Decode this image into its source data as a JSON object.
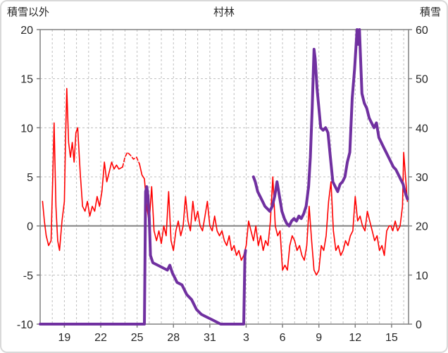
{
  "chart_data": {
    "type": "line",
    "title": "村林",
    "left_axis": {
      "label": "積雪以外",
      "min": -10,
      "max": 20,
      "ticks": [
        20,
        15,
        10,
        5,
        0,
        -5,
        -10
      ]
    },
    "right_axis": {
      "label": "積雪",
      "min": 0,
      "max": 60,
      "ticks": [
        60,
        50,
        40,
        30,
        20,
        10,
        0
      ]
    },
    "x_axis": {
      "min": 0,
      "max": 30.4,
      "grid_step": 1,
      "tick_positions": [
        2,
        5,
        8,
        11,
        14,
        17,
        20,
        23,
        26,
        29
      ],
      "tick_labels": [
        "19",
        "22",
        "25",
        "28",
        "31",
        "3",
        "6",
        "9",
        "12",
        "15"
      ]
    },
    "zero_line_left_value": 0,
    "colors": {
      "background": "#ffffff",
      "grid": "#bfbfbf",
      "axis": "#808080",
      "text": "#262626",
      "red": "#ff0000",
      "purple": "#7030a0"
    },
    "series": [
      {
        "id": "red-solid",
        "axis": "left",
        "color": "#ff0000",
        "width": 1.6,
        "segments": [
          [
            [
              0.2,
              2.5
            ],
            [
              0.35,
              0.5
            ],
            [
              0.5,
              -1.0
            ],
            [
              0.7,
              -2.0
            ],
            [
              0.9,
              -1.5
            ],
            [
              1.05,
              5.5
            ],
            [
              1.15,
              10.5
            ],
            [
              1.3,
              2.0
            ],
            [
              1.45,
              -1.5
            ],
            [
              1.6,
              -2.5
            ],
            [
              1.8,
              0.5
            ],
            [
              2.0,
              2.5
            ],
            [
              2.1,
              9.0
            ],
            [
              2.2,
              14.0
            ],
            [
              2.35,
              8.5
            ],
            [
              2.5,
              7.0
            ],
            [
              2.65,
              8.5
            ],
            [
              2.8,
              6.5
            ],
            [
              2.95,
              9.5
            ],
            [
              3.1,
              10.0
            ],
            [
              3.3,
              5.5
            ],
            [
              3.5,
              2.0
            ],
            [
              3.7,
              1.5
            ],
            [
              3.9,
              2.5
            ],
            [
              4.1,
              1.0
            ],
            [
              4.3,
              2.0
            ],
            [
              4.5,
              1.5
            ],
            [
              4.7,
              3.0
            ],
            [
              4.9,
              2.0
            ],
            [
              5.1,
              3.5
            ],
            [
              5.3,
              6.5
            ],
            [
              5.5,
              4.5
            ],
            [
              5.7,
              5.5
            ],
            [
              5.9,
              6.5
            ],
            [
              6.1,
              5.8
            ],
            [
              6.3,
              6.2
            ],
            [
              6.5,
              5.8
            ],
            [
              6.8,
              6.0
            ]
          ],
          [
            [
              8.2,
              6.3
            ],
            [
              8.4,
              5.2
            ],
            [
              8.6,
              4.8
            ],
            [
              8.8,
              2.0
            ],
            [
              9.0,
              0.3
            ],
            [
              9.2,
              4.0
            ],
            [
              9.4,
              -0.5
            ],
            [
              9.6,
              -1.5
            ],
            [
              9.8,
              -0.5
            ],
            [
              10.0,
              -1.8
            ],
            [
              10.2,
              0.0
            ],
            [
              10.4,
              -1.0
            ],
            [
              10.6,
              3.5
            ],
            [
              10.8,
              -1.5
            ],
            [
              11.0,
              -2.5
            ],
            [
              11.2,
              -0.5
            ],
            [
              11.4,
              0.5
            ],
            [
              11.6,
              -1.0
            ],
            [
              11.8,
              0.0
            ],
            [
              12.0,
              3.0
            ],
            [
              12.2,
              0.5
            ],
            [
              12.4,
              -0.5
            ],
            [
              12.6,
              2.5
            ],
            [
              12.8,
              0.5
            ],
            [
              13.0,
              1.5
            ],
            [
              13.2,
              0.0
            ],
            [
              13.4,
              -0.5
            ],
            [
              13.6,
              1.0
            ],
            [
              13.8,
              2.5
            ],
            [
              14.0,
              0.0
            ],
            [
              14.2,
              -0.5
            ],
            [
              14.4,
              1.0
            ],
            [
              14.6,
              -0.5
            ],
            [
              14.8,
              -1.0
            ],
            [
              15.0,
              -0.5
            ],
            [
              15.2,
              -1.5
            ],
            [
              15.4,
              -2.0
            ],
            [
              15.6,
              -1.0
            ],
            [
              15.8,
              -2.5
            ],
            [
              16.0,
              -2.0
            ],
            [
              16.2,
              -3.0
            ],
            [
              16.4,
              -2.5
            ],
            [
              16.6,
              -3.5
            ],
            [
              16.8,
              -3.0
            ],
            [
              17.0,
              -2.0
            ],
            [
              17.2,
              0.5
            ],
            [
              17.4,
              -0.5
            ],
            [
              17.6,
              -1.5
            ],
            [
              17.8,
              0.0
            ],
            [
              18.0,
              -2.0
            ],
            [
              18.2,
              -1.0
            ],
            [
              18.4,
              -2.5
            ],
            [
              18.6,
              -1.5
            ],
            [
              18.8,
              -2.0
            ],
            [
              19.0,
              0.5
            ],
            [
              19.2,
              5.0
            ],
            [
              19.4,
              0.0
            ],
            [
              19.6,
              -1.0
            ],
            [
              19.8,
              -0.5
            ],
            [
              20.0,
              -4.5
            ],
            [
              20.2,
              -4.0
            ],
            [
              20.4,
              -4.5
            ],
            [
              20.6,
              -2.0
            ],
            [
              20.8,
              -1.0
            ],
            [
              21.0,
              -1.5
            ],
            [
              21.2,
              -2.5
            ],
            [
              21.4,
              -2.0
            ],
            [
              21.6,
              -3.0
            ],
            [
              21.8,
              -3.5
            ],
            [
              22.0,
              -2.0
            ],
            [
              22.2,
              2.0
            ],
            [
              22.4,
              -1.5
            ],
            [
              22.6,
              -4.5
            ],
            [
              22.8,
              -5.0
            ],
            [
              23.0,
              -4.5
            ],
            [
              23.2,
              -2.0
            ],
            [
              23.4,
              -2.5
            ],
            [
              23.6,
              -1.0
            ],
            [
              23.8,
              2.5
            ],
            [
              24.0,
              4.5
            ],
            [
              24.2,
              -0.5
            ],
            [
              24.4,
              -2.5
            ],
            [
              24.6,
              -2.0
            ],
            [
              24.8,
              -3.0
            ],
            [
              25.0,
              -2.5
            ],
            [
              25.2,
              -1.5
            ],
            [
              25.4,
              -2.0
            ],
            [
              25.6,
              -1.0
            ],
            [
              25.8,
              -0.5
            ],
            [
              26.0,
              3.0
            ],
            [
              26.2,
              0.5
            ],
            [
              26.4,
              1.0
            ],
            [
              26.6,
              0.0
            ],
            [
              26.8,
              -0.5
            ],
            [
              27.0,
              1.5
            ],
            [
              27.2,
              0.5
            ],
            [
              27.4,
              -0.5
            ],
            [
              27.6,
              -1.5
            ],
            [
              27.8,
              -1.0
            ],
            [
              28.0,
              -2.5
            ],
            [
              28.2,
              -2.0
            ],
            [
              28.4,
              -3.0
            ],
            [
              28.6,
              -0.5
            ],
            [
              28.8,
              0.0
            ],
            [
              28.95,
              0.0
            ],
            [
              29.1,
              -0.5
            ],
            [
              29.3,
              0.5
            ],
            [
              29.5,
              -0.5
            ],
            [
              29.7,
              0.0
            ],
            [
              29.9,
              2.0
            ],
            [
              30.0,
              7.5
            ],
            [
              30.15,
              5.0
            ],
            [
              30.3,
              2.5
            ]
          ]
        ]
      },
      {
        "id": "red-dashed",
        "axis": "left",
        "color": "#ff0000",
        "width": 1.6,
        "dash": "5,3",
        "segments": [
          [
            [
              6.8,
              6.0
            ],
            [
              7.0,
              7.0
            ],
            [
              7.2,
              7.5
            ],
            [
              7.45,
              7.2
            ],
            [
              7.7,
              6.8
            ],
            [
              7.95,
              7.0
            ],
            [
              8.2,
              6.3
            ]
          ]
        ]
      },
      {
        "id": "purple-snow",
        "axis": "right",
        "color": "#7030a0",
        "width": 4,
        "segments": [
          [
            [
              0.0,
              0
            ],
            [
              8.6,
              0
            ],
            [
              8.7,
              27
            ],
            [
              8.8,
              28
            ],
            [
              8.9,
              26
            ],
            [
              9.0,
              22
            ],
            [
              9.1,
              14
            ],
            [
              9.3,
              12.5
            ],
            [
              9.7,
              12
            ],
            [
              10.1,
              11.5
            ],
            [
              10.5,
              11
            ],
            [
              10.7,
              12
            ],
            [
              10.9,
              10.5
            ],
            [
              11.3,
              8.5
            ],
            [
              11.7,
              8
            ],
            [
              12.1,
              6
            ],
            [
              12.5,
              5
            ],
            [
              12.9,
              3
            ],
            [
              13.3,
              2
            ],
            [
              13.7,
              1.5
            ],
            [
              14.1,
              1
            ],
            [
              14.5,
              0.5
            ],
            [
              14.9,
              0
            ],
            [
              16.8,
              0
            ],
            [
              16.9,
              14
            ],
            [
              16.95,
              15
            ]
          ],
          [
            [
              17.6,
              30
            ],
            [
              17.75,
              29
            ],
            [
              17.95,
              27
            ],
            [
              18.15,
              26
            ],
            [
              18.35,
              25
            ],
            [
              18.55,
              24
            ],
            [
              18.75,
              23.5
            ],
            [
              18.95,
              23
            ],
            [
              19.15,
              24
            ],
            [
              19.35,
              26
            ],
            [
              19.55,
              29
            ],
            [
              19.75,
              26
            ],
            [
              19.95,
              23
            ],
            [
              20.15,
              21.5
            ],
            [
              20.35,
              20.5
            ],
            [
              20.55,
              20
            ],
            [
              20.75,
              21
            ],
            [
              20.95,
              21.5
            ],
            [
              21.15,
              21
            ],
            [
              21.35,
              22
            ],
            [
              21.55,
              21.5
            ],
            [
              21.75,
              22.5
            ],
            [
              21.95,
              24
            ],
            [
              22.15,
              28
            ],
            [
              22.3,
              34
            ],
            [
              22.45,
              44
            ],
            [
              22.6,
              56
            ],
            [
              22.7,
              54
            ],
            [
              22.85,
              48
            ],
            [
              23.0,
              44
            ],
            [
              23.15,
              40
            ],
            [
              23.35,
              39.5
            ],
            [
              23.55,
              40
            ],
            [
              23.75,
              39
            ],
            [
              23.95,
              34
            ],
            [
              24.15,
              29
            ],
            [
              24.35,
              28
            ],
            [
              24.55,
              27
            ],
            [
              24.75,
              28.5
            ],
            [
              24.95,
              29
            ],
            [
              25.15,
              30
            ],
            [
              25.35,
              33
            ],
            [
              25.55,
              35
            ],
            [
              25.75,
              46
            ],
            [
              25.95,
              52
            ],
            [
              26.15,
              60
            ],
            [
              26.25,
              57
            ],
            [
              26.35,
              60
            ],
            [
              26.55,
              47
            ],
            [
              26.75,
              45
            ],
            [
              26.95,
              44
            ],
            [
              27.15,
              42
            ],
            [
              27.35,
              41
            ],
            [
              27.55,
              40
            ],
            [
              27.75,
              41
            ],
            [
              27.95,
              38
            ],
            [
              28.15,
              37
            ],
            [
              28.35,
              36
            ],
            [
              28.55,
              35
            ],
            [
              28.75,
              34
            ],
            [
              28.95,
              33
            ],
            [
              29.15,
              32
            ],
            [
              29.35,
              31.5
            ],
            [
              29.55,
              30.5
            ],
            [
              29.75,
              29.5
            ],
            [
              29.95,
              28.5
            ],
            [
              30.1,
              27
            ],
            [
              30.3,
              25.5
            ]
          ]
        ]
      }
    ]
  }
}
